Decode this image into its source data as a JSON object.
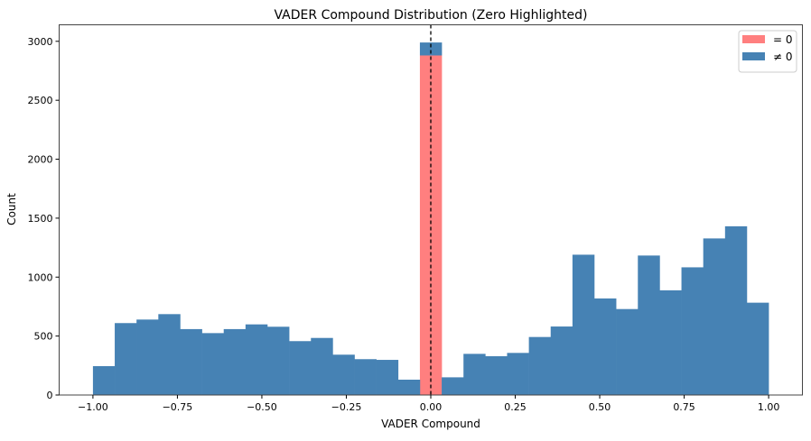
{
  "chart_data": {
    "type": "bar",
    "title": "VADER Compound Distribution (Zero Highlighted)",
    "xlabel": "VADER Compound",
    "ylabel": "Count",
    "xlim": [
      -1.1,
      1.1
    ],
    "ylim": [
      0,
      3140
    ],
    "grid": false,
    "legend_placement": "top-right",
    "bins": 31,
    "bin_range": [
      -1.0,
      1.0
    ],
    "x_ticks": [
      "−1.00",
      "−0.75",
      "−0.50",
      "−0.25",
      "0.00",
      "0.25",
      "0.50",
      "0.75",
      "1.00"
    ],
    "x_tick_values": [
      -1.0,
      -0.75,
      -0.5,
      -0.25,
      0.0,
      0.25,
      0.5,
      0.75,
      1.0
    ],
    "y_ticks": [
      "0",
      "500",
      "1000",
      "1500",
      "2000",
      "2500",
      "3000"
    ],
    "y_tick_values": [
      0,
      500,
      1000,
      1500,
      2000,
      2500,
      3000
    ],
    "vline": {
      "x": 0.0,
      "style": "dashed",
      "color": "#000000"
    },
    "stacked": true,
    "series": [
      {
        "name": "= 0",
        "color": "#ff7f7f",
        "values": [
          0,
          0,
          0,
          0,
          0,
          0,
          0,
          0,
          0,
          0,
          0,
          0,
          0,
          0,
          0,
          2880,
          0,
          0,
          0,
          0,
          0,
          0,
          0,
          0,
          0,
          0,
          0,
          0,
          0,
          0,
          0
        ]
      },
      {
        "name": "≠ 0",
        "color": "#4682b4",
        "values": [
          245,
          610,
          640,
          686,
          559,
          525,
          559,
          599,
          579,
          457,
          484,
          342,
          304,
          298,
          130,
          110,
          150,
          349,
          329,
          357,
          492,
          581,
          1190,
          819,
          729,
          1183,
          888,
          1083,
          1328,
          1431,
          783
        ]
      }
    ]
  }
}
